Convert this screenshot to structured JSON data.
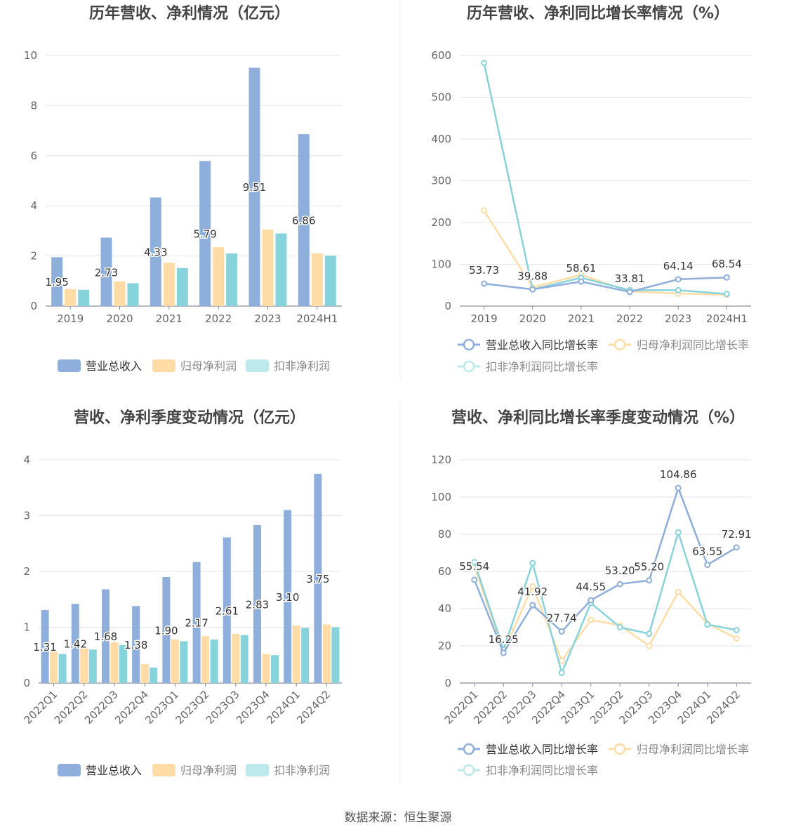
{
  "footer": {
    "source": "数据来源：恒生聚源"
  },
  "colors": {
    "revenue": "#8eaedb",
    "net": "#ffdca6",
    "deducted": "#87d3db",
    "revenue_light": "#c3d5ef",
    "deducted_light": "#bde8ec"
  },
  "chart_data": [
    {
      "type": "bar",
      "title": "历年营收、净利情况（亿元）",
      "categories": [
        "2019",
        "2020",
        "2021",
        "2022",
        "2023",
        "2024H1"
      ],
      "ylim": [
        0,
        10
      ],
      "yticks": [
        0,
        2,
        4,
        6,
        8,
        10
      ],
      "grid": true,
      "legend_position": "bottom",
      "series": [
        {
          "name": "营业总收入",
          "values": [
            1.95,
            2.73,
            4.33,
            5.79,
            9.51,
            6.86
          ],
          "labels": [
            "1.95",
            "2.73",
            "4.33",
            "5.79",
            "9.51",
            "6.86"
          ]
        },
        {
          "name": "归母净利润",
          "values": [
            0.68,
            0.99,
            1.73,
            2.35,
            3.05,
            2.1
          ]
        },
        {
          "name": "扣非净利润",
          "values": [
            0.65,
            0.91,
            1.52,
            2.1,
            2.9,
            2.01
          ]
        }
      ]
    },
    {
      "type": "line",
      "title": "历年营收、净利同比增长率情况（%）",
      "categories": [
        "2019",
        "2020",
        "2021",
        "2022",
        "2023",
        "2024H1"
      ],
      "ylim": [
        0,
        600
      ],
      "yticks": [
        0,
        100,
        200,
        300,
        400,
        500,
        600
      ],
      "grid": true,
      "legend_position": "bottom",
      "series": [
        {
          "name": "营业总收入同比增长率",
          "values": [
            53.73,
            39.88,
            58.61,
            33.81,
            64.14,
            68.54
          ],
          "labels": [
            "53.73",
            "39.88",
            "58.61",
            "33.81",
            "64.14",
            "68.54"
          ]
        },
        {
          "name": "归母净利润同比增长率",
          "values": [
            229,
            45,
            75,
            35,
            30,
            27
          ]
        },
        {
          "name": "扣非净利润同比增长率",
          "values": [
            582,
            40,
            68,
            38,
            38,
            29
          ]
        }
      ]
    },
    {
      "type": "bar",
      "title": "营收、净利季度变动情况（亿元）",
      "categories": [
        "2022Q1",
        "2022Q2",
        "2022Q3",
        "2022Q4",
        "2023Q1",
        "2023Q2",
        "2023Q3",
        "2023Q4",
        "2024Q1",
        "2024Q2"
      ],
      "ylim": [
        0,
        4
      ],
      "yticks": [
        0,
        1,
        2,
        3,
        4
      ],
      "grid": true,
      "legend_position": "bottom",
      "series": [
        {
          "name": "营业总收入",
          "values": [
            1.31,
            1.42,
            1.68,
            1.38,
            1.9,
            2.17,
            2.61,
            2.83,
            3.1,
            3.75
          ],
          "labels": [
            "1.31",
            "1.42",
            "1.68",
            "1.38",
            "1.90",
            "2.17",
            "2.61",
            "2.83",
            "3.10",
            "3.75"
          ]
        },
        {
          "name": "归母净利润",
          "values": [
            0.58,
            0.63,
            0.73,
            0.34,
            0.78,
            0.84,
            0.88,
            0.52,
            1.03,
            1.05
          ]
        },
        {
          "name": "扣非净利润",
          "values": [
            0.52,
            0.6,
            0.68,
            0.28,
            0.75,
            0.78,
            0.86,
            0.5,
            0.99,
            1.0
          ]
        }
      ]
    },
    {
      "type": "line",
      "title": "营收、净利同比增长率季度变动情况（%）",
      "categories": [
        "2022Q1",
        "2022Q2",
        "2022Q3",
        "2022Q4",
        "2023Q1",
        "2023Q2",
        "2023Q3",
        "2023Q4",
        "2024Q1",
        "2024Q2"
      ],
      "ylim": [
        0,
        120
      ],
      "yticks": [
        0,
        20,
        40,
        60,
        80,
        100,
        120
      ],
      "grid": true,
      "legend_position": "bottom",
      "series": [
        {
          "name": "营业总收入同比增长率",
          "values": [
            55.54,
            16.25,
            41.92,
            27.74,
            44.55,
            53.2,
            55.2,
            104.86,
            63.55,
            72.91
          ],
          "labels": [
            "55.54",
            "16.25",
            "41.92",
            "27.74",
            "44.55",
            "53.20",
            "55.20",
            "104.86",
            "63.55",
            "72.91"
          ]
        },
        {
          "name": "归母净利润同比增长率",
          "values": [
            63,
            17,
            52,
            12,
            34,
            31,
            20,
            49,
            32,
            24
          ]
        },
        {
          "name": "扣非净利润同比增长率",
          "values": [
            65,
            18,
            64.5,
            5.5,
            43,
            30,
            26.5,
            81,
            31.5,
            28.5
          ]
        }
      ]
    }
  ]
}
